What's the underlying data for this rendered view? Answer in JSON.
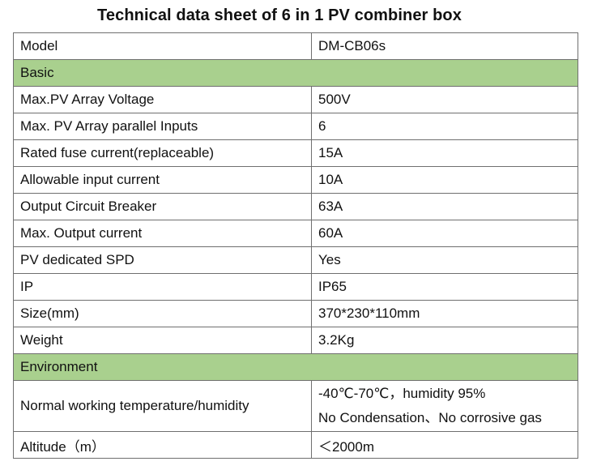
{
  "title": "Technical data sheet of 6 in 1 PV combiner box",
  "rows": [
    {
      "label": "Model",
      "value": "DM-CB06s"
    },
    {
      "section": "Basic"
    },
    {
      "label": "Max.PV Array Voltage",
      "value": "500V"
    },
    {
      "label": "Max. PV Array parallel Inputs",
      "value": "6"
    },
    {
      "label": "Rated fuse current(replaceable)",
      "value": "15A"
    },
    {
      "label": "Allowable input current",
      "value": "10A"
    },
    {
      "label": "Output Circuit Breaker",
      "value": "63A"
    },
    {
      "label": "Max. Output current",
      "value": "60A"
    },
    {
      "label": "PV dedicated SPD",
      "value": "Yes"
    },
    {
      "label": "IP",
      "value": "IP65"
    },
    {
      "label": "Size(mm)",
      "value": "370*230*110mm"
    },
    {
      "label": "Weight",
      "value": "3.2Kg"
    },
    {
      "section": "Environment"
    },
    {
      "label": "Normal working temperature/humidity",
      "value_lines": [
        "-40℃-70℃，humidity 95%",
        "No Condensation、No corrosive gas"
      ]
    },
    {
      "label": "Altitude（m）",
      "value": "＜2000m"
    }
  ],
  "colors": {
    "section_bg": "#a9d08e",
    "border": "#6f6f6f"
  }
}
